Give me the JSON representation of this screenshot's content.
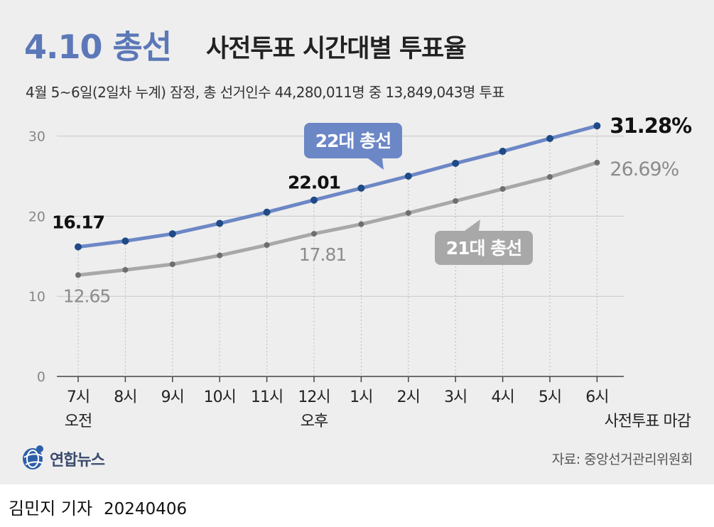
{
  "header": {
    "title_main": "4.10 총선",
    "title_sub": "사전투표 시간대별 투표율",
    "subtitle": "4월 5~6일(2일차 누계) 잠정, 총 선거인수 44,280,011명 중 13,849,043명 투표"
  },
  "footer": {
    "logo_text": "연합뉴스",
    "source": "자료: 중앙선거관리위원회",
    "reporter": "김민지 기자",
    "date": "20240406"
  },
  "colors": {
    "series_22": "#6c87c6",
    "series_22_marker": "#1e4a86",
    "series_21": "#a8a8a8",
    "series_21_marker": "#6e6e6e",
    "title_accent": "#5b78b8"
  },
  "chart_data": {
    "type": "line",
    "x": [
      "7시",
      "8시",
      "9시",
      "10시",
      "11시",
      "12시",
      "1시",
      "2시",
      "3시",
      "4시",
      "5시",
      "6시"
    ],
    "x_sublabels": {
      "0": "오전",
      "5": "오후",
      "11": "사전투표 마감"
    },
    "ylim": [
      0,
      30
    ],
    "yticks": [
      0,
      10,
      20,
      30
    ],
    "grid": true,
    "series": [
      {
        "name": "22대 총선",
        "values": [
          16.17,
          16.9,
          17.8,
          19.1,
          20.5,
          22.01,
          23.5,
          25.0,
          26.6,
          28.1,
          29.7,
          31.28
        ],
        "labels": {
          "0": "16.17",
          "5": "22.01",
          "11": "31.28%"
        }
      },
      {
        "name": "21대 총선",
        "values": [
          12.65,
          13.3,
          14.0,
          15.1,
          16.4,
          17.81,
          19.0,
          20.4,
          21.9,
          23.4,
          24.9,
          26.69
        ],
        "labels": {
          "0": "12.65",
          "5": "17.81",
          "11": "26.69%"
        }
      }
    ]
  }
}
